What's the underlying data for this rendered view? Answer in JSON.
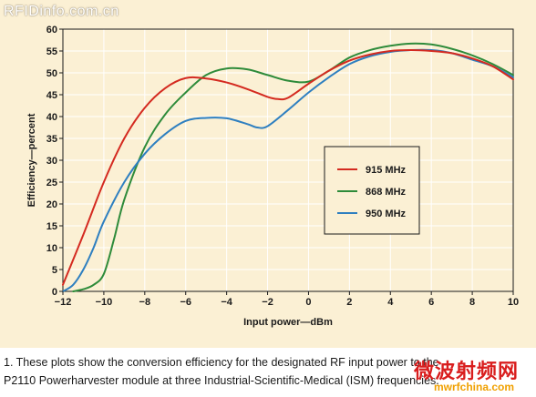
{
  "watermark_top": "RFIDinfo.com.cn",
  "caption": {
    "line1": "1. These plots show the conversion efficiency for the designated RF input power to the",
    "line2": "P2110 Powerharvester module at three Industrial-Scientific-Medical (ISM) frequencies."
  },
  "watermark_bottom": {
    "text": "微波射频网",
    "url": "mwrfchina.com"
  },
  "colors": {
    "background": "#fbf0d4",
    "grid": "#ffffff",
    "915": "#d42a20",
    "868": "#2e8b3a",
    "950": "#2e7fc0"
  },
  "chart_data": {
    "type": "line",
    "xlabel": "Input power—dBm",
    "ylabel": "Efficiency—percent",
    "xlim": [
      -12,
      10
    ],
    "ylim": [
      0,
      60
    ],
    "xticks": [
      -12,
      -10,
      -8,
      -6,
      -4,
      -2,
      0,
      2,
      4,
      6,
      8,
      10
    ],
    "yticks": [
      0,
      5,
      10,
      15,
      20,
      25,
      30,
      35,
      40,
      45,
      50,
      55,
      60
    ],
    "grid": true,
    "legend_position": "center-right",
    "series": [
      {
        "name": "915 MHz",
        "color": "#d42a20",
        "x": [
          -12,
          -11,
          -10,
          -9,
          -8,
          -7,
          -6,
          -5,
          -4,
          -3,
          -2,
          -1.5,
          -1,
          0,
          1,
          2,
          3,
          4,
          5,
          6,
          7,
          8,
          9,
          10
        ],
        "y": [
          1.5,
          13,
          25,
          35,
          42,
          46.5,
          48.8,
          48.7,
          47.8,
          46.3,
          44.5,
          44,
          44.3,
          47.5,
          50.5,
          52.8,
          54.2,
          55,
          55.2,
          55,
          54.5,
          53.3,
          51.5,
          48.5
        ]
      },
      {
        "name": "868 MHz",
        "color": "#2e8b3a",
        "x": [
          -11.5,
          -11,
          -10.5,
          -10,
          -9.5,
          -9,
          -8,
          -7,
          -6,
          -5,
          -4,
          -3,
          -2,
          -1,
          0,
          1,
          2,
          3,
          4,
          5,
          6,
          7,
          8,
          9,
          10
        ],
        "y": [
          0,
          0.5,
          1.5,
          4,
          12,
          21,
          33,
          40.5,
          45.5,
          49.5,
          51,
          50.8,
          49.5,
          48.2,
          48,
          50.5,
          53.5,
          55.2,
          56.2,
          56.7,
          56.5,
          55.5,
          54,
          52,
          49.5
        ]
      },
      {
        "name": "950 MHz",
        "color": "#2e7fc0",
        "x": [
          -12,
          -11.5,
          -11,
          -10.5,
          -10,
          -9,
          -8,
          -7,
          -6,
          -5,
          -4,
          -3,
          -2.5,
          -2,
          -1,
          0,
          1,
          2,
          3,
          4,
          5,
          6,
          7,
          8,
          9,
          10
        ],
        "y": [
          0,
          1.5,
          5,
          10,
          16,
          25,
          31.5,
          36,
          39,
          39.7,
          39.6,
          38.3,
          37.5,
          37.8,
          41.5,
          45.5,
          49,
          52,
          53.8,
          54.8,
          55.2,
          55.2,
          54.5,
          53,
          51.5,
          49
        ]
      }
    ]
  }
}
